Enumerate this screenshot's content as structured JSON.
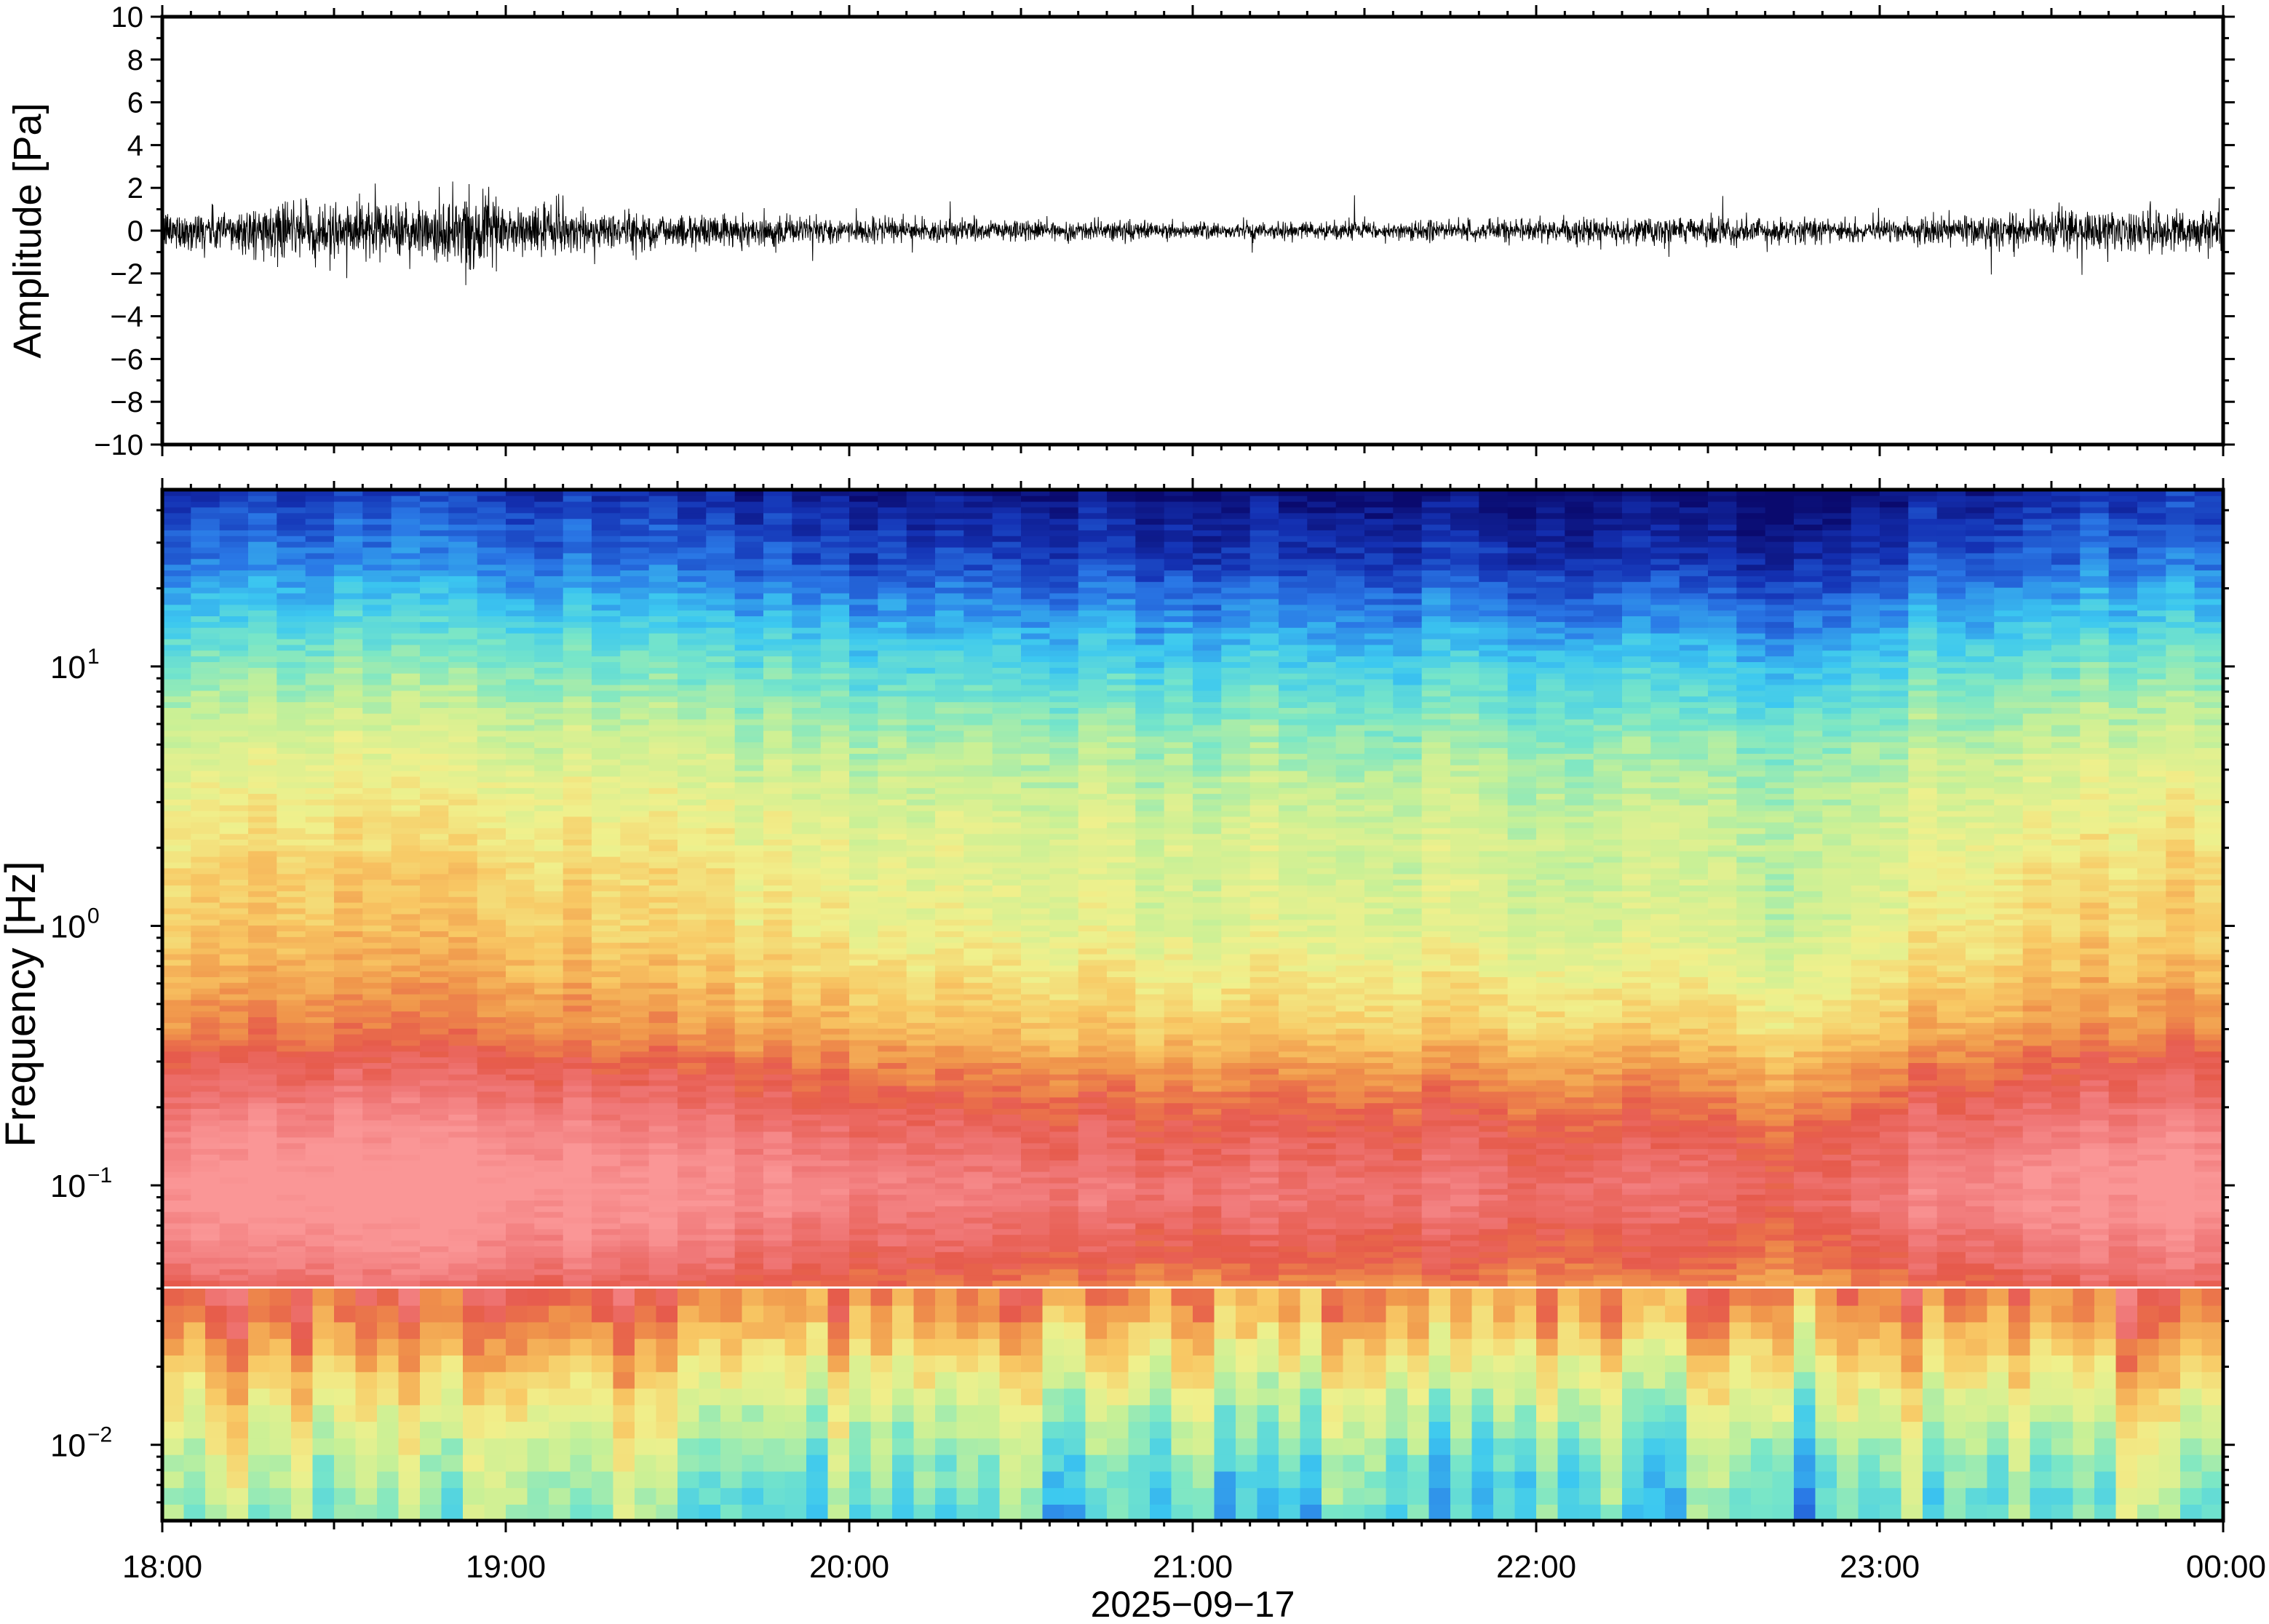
{
  "chart_data": [
    {
      "type": "line",
      "panel": "waveform",
      "ylabel": "Amplitude [Pa]",
      "ylim": [
        -10,
        10
      ],
      "ytick_labels": [
        "10",
        "8",
        "6",
        "4",
        "2",
        "0",
        "−2",
        "−4",
        "−6",
        "−8",
        "−10"
      ],
      "yticks": [
        10,
        8,
        6,
        4,
        2,
        0,
        -2,
        -4,
        -6,
        -8,
        -10
      ],
      "x_time_range": [
        "2025-09-17 18:00",
        "2025-09-18 00:00"
      ],
      "grid": false,
      "trace_color": "#000000",
      "envelope": {
        "time_hours": [
          18.0,
          18.25,
          18.5,
          18.75,
          18.85,
          19.0,
          19.25,
          19.5,
          19.75,
          20.0,
          20.25,
          20.5,
          20.75,
          21.0,
          21.25,
          21.5,
          21.75,
          22.0,
          22.25,
          22.5,
          22.75,
          23.0,
          23.25,
          23.5,
          23.75,
          24.0
        ],
        "typical_amplitude_pa": [
          0.8,
          1.0,
          1.1,
          1.2,
          1.4,
          1.1,
          0.9,
          0.7,
          0.6,
          0.5,
          0.5,
          0.45,
          0.4,
          0.35,
          0.35,
          0.4,
          0.45,
          0.45,
          0.5,
          0.55,
          0.5,
          0.45,
          0.6,
          0.8,
          0.9,
          0.9
        ],
        "peak_positive_pa": [
          1.5,
          2.0,
          2.3,
          2.6,
          3.3,
          2.6,
          2.1,
          1.9,
          1.8,
          1.6,
          1.5,
          1.2,
          1.0,
          1.0,
          1.2,
          1.8,
          1.3,
          1.2,
          1.5,
          1.9,
          1.4,
          1.3,
          1.8,
          2.2,
          1.9,
          1.5
        ],
        "peak_negative_pa": [
          -1.6,
          -2.0,
          -2.4,
          -3.0,
          -3.6,
          -3.2,
          -2.2,
          -1.9,
          -1.6,
          -1.5,
          -1.4,
          -1.2,
          -1.1,
          -1.0,
          -1.1,
          -1.3,
          -1.3,
          -1.2,
          -1.4,
          -1.5,
          -1.3,
          -1.2,
          -1.9,
          -3.0,
          -2.2,
          -1.9
        ]
      }
    },
    {
      "type": "heatmap",
      "panel": "spectrogram",
      "ylabel": "Frequency [Hz]",
      "y_scale": "log",
      "ylim": [
        0.0051,
        48
      ],
      "yticks": [
        0.01,
        0.1,
        1,
        10
      ],
      "ytick_labels": [
        {
          "base": "10",
          "exp": "−2"
        },
        {
          "base": "10",
          "exp": "−1"
        },
        {
          "base": "10",
          "exp": "0"
        },
        {
          "base": "10",
          "exp": "1"
        }
      ],
      "xlabel": "2025−09−17",
      "xtick_labels": [
        "18:00",
        "19:00",
        "20:00",
        "21:00",
        "22:00",
        "23:00",
        "00:00"
      ],
      "x_time_hours": [
        18,
        19,
        20,
        21,
        22,
        23,
        24
      ],
      "colormap": [
        "#0a0a6e",
        "#1432b4",
        "#2a78e6",
        "#3cc8f0",
        "#78e6c8",
        "#c8f096",
        "#f0f08c",
        "#f8c864",
        "#f0964b",
        "#e65a4b",
        "#f07878",
        "#fa9696"
      ],
      "colormap_min_level": 0,
      "colormap_max_level": 1,
      "spectral_level_by_frequency": {
        "frequency_hz": [
          0.0051,
          0.008,
          0.012,
          0.02,
          0.03,
          0.05,
          0.08,
          0.1,
          0.15,
          0.25,
          0.4,
          0.7,
          1.0,
          2.0,
          4.0,
          8.0,
          15,
          25,
          48
        ],
        "level": [
          0.36,
          0.4,
          0.48,
          0.6,
          0.72,
          0.86,
          0.94,
          0.95,
          0.9,
          0.8,
          0.68,
          0.6,
          0.56,
          0.53,
          0.47,
          0.37,
          0.25,
          0.14,
          0.04
        ]
      },
      "activity_by_time": {
        "time_hours": [
          18.0,
          18.5,
          19.0,
          19.5,
          20.0,
          20.5,
          21.0,
          21.5,
          22.0,
          22.5,
          22.75,
          23.0,
          23.5,
          24.0
        ],
        "relative_level": [
          0.05,
          0.07,
          0.07,
          0.03,
          0.0,
          -0.03,
          -0.05,
          -0.04,
          -0.05,
          -0.04,
          -0.08,
          -0.02,
          0.04,
          0.05
        ]
      },
      "grid": false
    }
  ]
}
